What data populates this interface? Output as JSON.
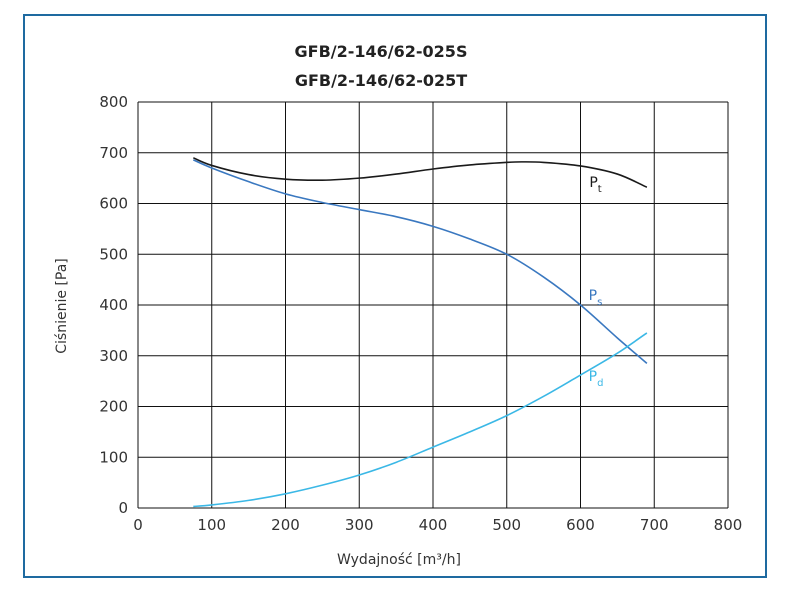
{
  "chart_data": {
    "type": "line",
    "title": [
      "GFB/2-146/62-025S",
      "GFB/2-146/62-025T"
    ],
    "xlabel": "Wydajność [m³/h]",
    "ylabel": "Ciśnienie [Pa]",
    "xlim": [
      0,
      800
    ],
    "ylim": [
      0,
      800
    ],
    "xticks": [
      0,
      100,
      200,
      300,
      400,
      500,
      600,
      700,
      800
    ],
    "yticks": [
      0,
      100,
      200,
      300,
      400,
      500,
      600,
      700,
      800
    ],
    "grid": true,
    "series": [
      {
        "name": "Pt",
        "name_main": "P",
        "name_sub": "t",
        "color": "#1a1a1a",
        "x": [
          75,
          100,
          150,
          200,
          250,
          300,
          350,
          400,
          450,
          500,
          520,
          550,
          600,
          650,
          690
        ],
        "y": [
          690,
          675,
          657,
          648,
          646,
          650,
          658,
          668,
          676,
          681,
          682,
          681,
          674,
          658,
          632
        ]
      },
      {
        "name": "Ps",
        "name_main": "P",
        "name_sub": "s",
        "color": "#3a78c0",
        "x": [
          75,
          100,
          150,
          200,
          250,
          300,
          350,
          400,
          450,
          500,
          550,
          600,
          650,
          690
        ],
        "y": [
          686,
          670,
          643,
          619,
          602,
          588,
          574,
          555,
          530,
          500,
          455,
          400,
          335,
          285
        ]
      },
      {
        "name": "Pd",
        "name_main": "P",
        "name_sub": "d",
        "color": "#3bb8e6",
        "x": [
          75,
          100,
          150,
          200,
          250,
          300,
          350,
          400,
          450,
          500,
          550,
          600,
          650,
          690
        ],
        "y": [
          3,
          6,
          15,
          28,
          45,
          65,
          90,
          120,
          150,
          182,
          220,
          262,
          305,
          345
        ]
      }
    ],
    "labels": [
      {
        "series": "Pt",
        "x": 612,
        "y": 633
      },
      {
        "series": "Ps",
        "x": 611,
        "y": 410
      },
      {
        "series": "Pd",
        "x": 611,
        "y": 250
      }
    ]
  }
}
